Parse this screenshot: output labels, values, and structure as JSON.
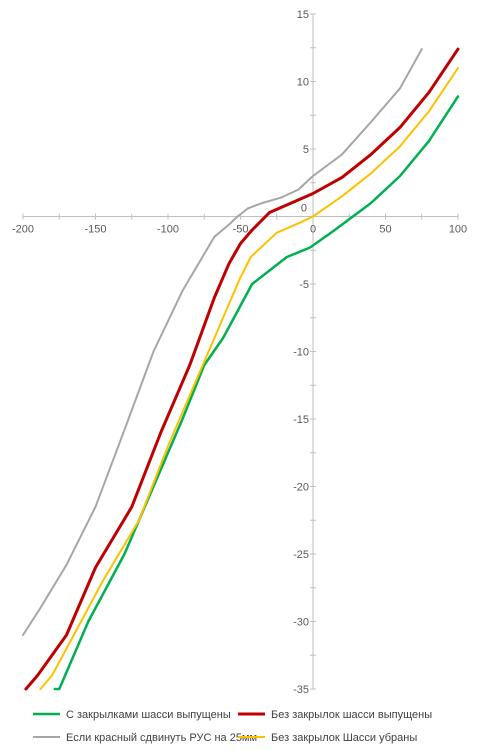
{
  "chart_data": {
    "type": "line",
    "title": "",
    "xlabel": "",
    "ylabel": "",
    "xlim": [
      -200,
      100
    ],
    "ylim": [
      -35,
      15
    ],
    "x_ticks": [
      -200,
      -150,
      -100,
      -50,
      0,
      50,
      100
    ],
    "y_ticks": [
      15,
      10,
      5,
      0,
      -5,
      -10,
      -15,
      -20,
      -25,
      -30,
      -35
    ],
    "grid": false,
    "legend_position": "bottom",
    "series": [
      {
        "name": "С закрылками шасси выпущены",
        "color": "#00b050",
        "width": 2.5,
        "points": [
          [
            -178,
            -35
          ],
          [
            -175,
            -35
          ],
          [
            -155,
            -30
          ],
          [
            -130,
            -25
          ],
          [
            -110,
            -20
          ],
          [
            -90,
            -15
          ],
          [
            -75,
            -11
          ],
          [
            -62,
            -9
          ],
          [
            -42,
            -5
          ],
          [
            -30,
            -4
          ],
          [
            -18,
            -3
          ],
          [
            -2,
            -2.3
          ],
          [
            15,
            -1
          ],
          [
            40,
            1
          ],
          [
            60,
            3
          ],
          [
            80,
            5.6
          ],
          [
            100,
            8.9
          ]
        ]
      },
      {
        "name": "Без закрылок шасси выпущены",
        "color": "#c00000",
        "width": 3,
        "points": [
          [
            -198,
            -35
          ],
          [
            -190,
            -34
          ],
          [
            -170,
            -31
          ],
          [
            -150,
            -26
          ],
          [
            -125,
            -21.5
          ],
          [
            -105,
            -16
          ],
          [
            -85,
            -11
          ],
          [
            -68,
            -6
          ],
          [
            -58,
            -3.5
          ],
          [
            -50,
            -2
          ],
          [
            -42,
            -1
          ],
          [
            -30,
            0.3
          ],
          [
            -15,
            1
          ],
          [
            0,
            1.7
          ],
          [
            20,
            2.9
          ],
          [
            40,
            4.6
          ],
          [
            60,
            6.6
          ],
          [
            80,
            9.2
          ],
          [
            100,
            12.4
          ]
        ]
      },
      {
        "name": "Если красный сдвинуть РУС на 25мм",
        "color": "#a6a6a6",
        "width": 2,
        "points": [
          [
            -200,
            -31
          ],
          [
            -188,
            -29
          ],
          [
            -170,
            -25.8
          ],
          [
            -150,
            -21.5
          ],
          [
            -130,
            -15.8
          ],
          [
            -110,
            -10
          ],
          [
            -90,
            -5.5
          ],
          [
            -68,
            -1.5
          ],
          [
            -58,
            -0.6
          ],
          [
            -52,
            0
          ],
          [
            -45,
            0.6
          ],
          [
            -35,
            1
          ],
          [
            -22,
            1.4
          ],
          [
            -10,
            2
          ],
          [
            0,
            3
          ],
          [
            20,
            4.6
          ],
          [
            40,
            7
          ],
          [
            60,
            9.5
          ],
          [
            75,
            12.4
          ]
        ]
      },
      {
        "name": "Без закрылок Шасси убраны",
        "color": "#ffc000",
        "width": 2,
        "points": [
          [
            -188,
            -35
          ],
          [
            -180,
            -34
          ],
          [
            -165,
            -31
          ],
          [
            -145,
            -27
          ],
          [
            -120,
            -22.5
          ],
          [
            -100,
            -17
          ],
          [
            -80,
            -12
          ],
          [
            -60,
            -7
          ],
          [
            -50,
            -4.5
          ],
          [
            -43,
            -3
          ],
          [
            -35,
            -2.2
          ],
          [
            -25,
            -1.2
          ],
          [
            -10,
            -0.5
          ],
          [
            0,
            0
          ],
          [
            20,
            1.5
          ],
          [
            40,
            3.2
          ],
          [
            60,
            5.2
          ],
          [
            80,
            7.8
          ],
          [
            100,
            11
          ]
        ]
      }
    ]
  }
}
